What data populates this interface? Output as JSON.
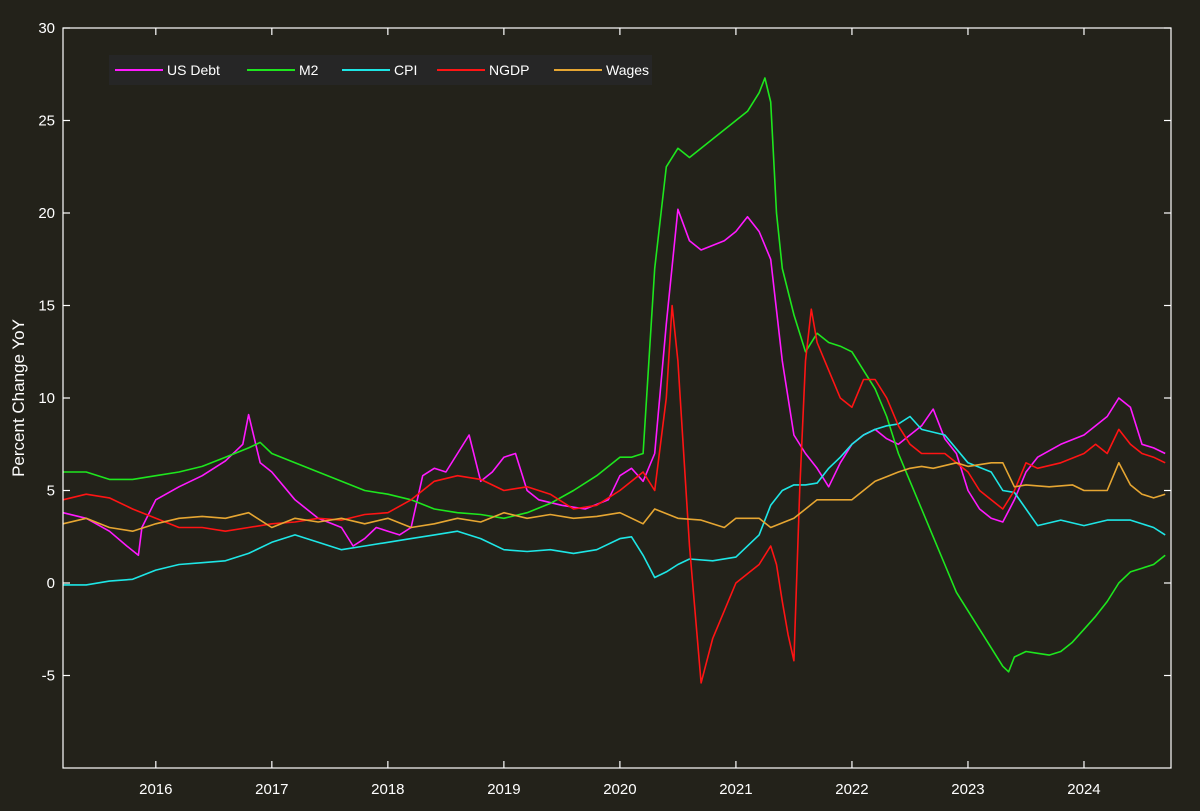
{
  "colors": {
    "background": "#23221a",
    "plot_background": "#23221a",
    "axis": "#ffffff",
    "legend_background": "#262626"
  },
  "chart_data": {
    "type": "line",
    "title": "",
    "xlabel": "",
    "ylabel": "Percent Change YoY",
    "xlim": [
      2015.2,
      2024.75
    ],
    "ylim": [
      -10,
      30
    ],
    "xticks": [
      2016,
      2017,
      2018,
      2019,
      2020,
      2021,
      2022,
      2023,
      2024
    ],
    "xtick_labels": [
      "2016",
      "2017",
      "2018",
      "2019",
      "2020",
      "2021",
      "2022",
      "2023",
      "2024"
    ],
    "yticks": [
      -5,
      0,
      5,
      10,
      15,
      20,
      25,
      30
    ],
    "ytick_labels": [
      "-5",
      "0",
      "5",
      "10",
      "15",
      "20",
      "25",
      "30"
    ],
    "grid": false,
    "legend_position": "top-left",
    "series": [
      {
        "name": "US Debt",
        "color": "#ff1aff",
        "x": [
          2015.2,
          2015.4,
          2015.6,
          2015.75,
          2015.85,
          2015.88,
          2016.0,
          2016.2,
          2016.4,
          2016.6,
          2016.75,
          2016.8,
          2016.9,
          2017.0,
          2017.2,
          2017.4,
          2017.6,
          2017.7,
          2017.8,
          2017.9,
          2018.0,
          2018.1,
          2018.2,
          2018.3,
          2018.4,
          2018.5,
          2018.6,
          2018.7,
          2018.8,
          2018.9,
          2019.0,
          2019.1,
          2019.2,
          2019.3,
          2019.5,
          2019.7,
          2019.9,
          2020.0,
          2020.1,
          2020.2,
          2020.3,
          2020.4,
          2020.5,
          2020.6,
          2020.7,
          2020.9,
          2021.0,
          2021.1,
          2021.2,
          2021.3,
          2021.4,
          2021.5,
          2021.6,
          2021.7,
          2021.8,
          2021.9,
          2022.0,
          2022.1,
          2022.2,
          2022.3,
          2022.4,
          2022.5,
          2022.6,
          2022.7,
          2022.8,
          2022.9,
          2023.0,
          2023.1,
          2023.2,
          2023.3,
          2023.4,
          2023.5,
          2023.6,
          2023.8,
          2024.0,
          2024.2,
          2024.3,
          2024.4,
          2024.5,
          2024.6,
          2024.7
        ],
        "values": [
          3.8,
          3.5,
          2.8,
          2.0,
          1.5,
          3.0,
          4.5,
          5.2,
          5.8,
          6.6,
          7.5,
          9.1,
          6.5,
          6.0,
          4.5,
          3.5,
          3.0,
          2.0,
          2.4,
          3.0,
          2.8,
          2.6,
          3.0,
          5.8,
          6.2,
          6.0,
          7.0,
          8.0,
          5.5,
          6.0,
          6.8,
          7.0,
          5.0,
          4.5,
          4.2,
          4.0,
          4.5,
          5.8,
          6.2,
          5.5,
          7.0,
          14.0,
          20.2,
          18.5,
          18.0,
          18.5,
          19.0,
          19.8,
          19.0,
          17.5,
          12.0,
          8.0,
          7.0,
          6.2,
          5.2,
          6.5,
          7.5,
          8.0,
          8.3,
          7.8,
          7.5,
          8.0,
          8.5,
          9.4,
          7.8,
          7.0,
          5.0,
          4.0,
          3.5,
          3.3,
          4.5,
          6.0,
          6.8,
          7.5,
          8.0,
          9.0,
          10.0,
          9.5,
          7.5,
          7.3,
          7.0
        ]
      },
      {
        "name": "M2",
        "color": "#1ee61e",
        "x": [
          2015.2,
          2015.4,
          2015.6,
          2015.8,
          2016.0,
          2016.2,
          2016.4,
          2016.6,
          2016.8,
          2016.9,
          2017.0,
          2017.2,
          2017.4,
          2017.6,
          2017.8,
          2018.0,
          2018.2,
          2018.4,
          2018.6,
          2018.8,
          2019.0,
          2019.2,
          2019.4,
          2019.6,
          2019.8,
          2020.0,
          2020.1,
          2020.2,
          2020.3,
          2020.4,
          2020.5,
          2020.6,
          2020.7,
          2020.8,
          2020.9,
          2021.0,
          2021.1,
          2021.2,
          2021.25,
          2021.3,
          2021.35,
          2021.4,
          2021.5,
          2021.6,
          2021.7,
          2021.8,
          2021.9,
          2022.0,
          2022.1,
          2022.2,
          2022.3,
          2022.4,
          2022.5,
          2022.6,
          2022.7,
          2022.8,
          2022.9,
          2023.0,
          2023.1,
          2023.2,
          2023.3,
          2023.35,
          2023.4,
          2023.5,
          2023.6,
          2023.7,
          2023.8,
          2023.9,
          2024.0,
          2024.1,
          2024.2,
          2024.3,
          2024.4,
          2024.5,
          2024.6,
          2024.7
        ],
        "values": [
          6.0,
          6.0,
          5.6,
          5.6,
          5.8,
          6.0,
          6.3,
          6.8,
          7.3,
          7.6,
          7.0,
          6.5,
          6.0,
          5.5,
          5.0,
          4.8,
          4.5,
          4.0,
          3.8,
          3.7,
          3.5,
          3.8,
          4.3,
          5.0,
          5.8,
          6.8,
          6.8,
          7.0,
          17.0,
          22.5,
          23.5,
          23.0,
          23.5,
          24.0,
          24.5,
          25.0,
          25.5,
          26.5,
          27.3,
          26.0,
          20.0,
          17.0,
          14.5,
          12.5,
          13.5,
          13.0,
          12.8,
          12.5,
          11.5,
          10.5,
          9.0,
          7.0,
          5.5,
          4.0,
          2.5,
          1.0,
          -0.5,
          -1.5,
          -2.5,
          -3.5,
          -4.5,
          -4.8,
          -4.0,
          -3.7,
          -3.8,
          -3.9,
          -3.7,
          -3.2,
          -2.5,
          -1.8,
          -1.0,
          0.0,
          0.6,
          0.8,
          1.0,
          1.5
        ]
      },
      {
        "name": "CPI",
        "color": "#1ee6e6",
        "x": [
          2015.2,
          2015.4,
          2015.6,
          2015.8,
          2016.0,
          2016.2,
          2016.4,
          2016.6,
          2016.8,
          2017.0,
          2017.2,
          2017.4,
          2017.6,
          2017.8,
          2018.0,
          2018.2,
          2018.4,
          2018.6,
          2018.8,
          2019.0,
          2019.2,
          2019.4,
          2019.6,
          2019.8,
          2020.0,
          2020.1,
          2020.2,
          2020.3,
          2020.4,
          2020.5,
          2020.6,
          2020.8,
          2021.0,
          2021.2,
          2021.3,
          2021.4,
          2021.5,
          2021.6,
          2021.7,
          2021.8,
          2021.9,
          2022.0,
          2022.1,
          2022.2,
          2022.3,
          2022.4,
          2022.5,
          2022.6,
          2022.8,
          2023.0,
          2023.2,
          2023.3,
          2023.4,
          2023.5,
          2023.6,
          2023.8,
          2024.0,
          2024.2,
          2024.4,
          2024.6,
          2024.7
        ],
        "values": [
          -0.1,
          -0.1,
          0.1,
          0.2,
          0.7,
          1.0,
          1.1,
          1.2,
          1.6,
          2.2,
          2.6,
          2.2,
          1.8,
          2.0,
          2.2,
          2.4,
          2.6,
          2.8,
          2.4,
          1.8,
          1.7,
          1.8,
          1.6,
          1.8,
          2.4,
          2.5,
          1.5,
          0.3,
          0.6,
          1.0,
          1.3,
          1.2,
          1.4,
          2.6,
          4.2,
          5.0,
          5.3,
          5.3,
          5.4,
          6.2,
          6.8,
          7.5,
          8.0,
          8.3,
          8.5,
          8.6,
          9.0,
          8.3,
          8.0,
          6.5,
          6.0,
          5.0,
          4.9,
          4.0,
          3.1,
          3.4,
          3.1,
          3.4,
          3.4,
          3.0,
          2.6
        ]
      },
      {
        "name": "NGDP",
        "color": "#ff1414",
        "x": [
          2015.2,
          2015.4,
          2015.6,
          2015.8,
          2016.0,
          2016.2,
          2016.4,
          2016.6,
          2016.8,
          2017.0,
          2017.2,
          2017.4,
          2017.6,
          2017.8,
          2018.0,
          2018.2,
          2018.4,
          2018.6,
          2018.8,
          2019.0,
          2019.2,
          2019.4,
          2019.6,
          2019.8,
          2020.0,
          2020.1,
          2020.2,
          2020.3,
          2020.4,
          2020.45,
          2020.5,
          2020.6,
          2020.7,
          2020.8,
          2020.9,
          2021.0,
          2021.1,
          2021.2,
          2021.3,
          2021.35,
          2021.4,
          2021.45,
          2021.5,
          2021.55,
          2021.6,
          2021.65,
          2021.7,
          2021.8,
          2021.9,
          2022.0,
          2022.1,
          2022.2,
          2022.3,
          2022.4,
          2022.5,
          2022.6,
          2022.7,
          2022.8,
          2022.9,
          2023.0,
          2023.1,
          2023.2,
          2023.3,
          2023.4,
          2023.5,
          2023.6,
          2023.8,
          2024.0,
          2024.1,
          2024.2,
          2024.3,
          2024.4,
          2024.5,
          2024.6,
          2024.7
        ],
        "values": [
          4.5,
          4.8,
          4.6,
          4.0,
          3.5,
          3.0,
          3.0,
          2.8,
          3.0,
          3.2,
          3.3,
          3.5,
          3.4,
          3.7,
          3.8,
          4.5,
          5.5,
          5.8,
          5.6,
          5.0,
          5.2,
          4.8,
          4.0,
          4.2,
          5.0,
          5.5,
          6.0,
          5.0,
          10.0,
          15.0,
          12.0,
          2.0,
          -5.4,
          -3.0,
          -1.5,
          0.0,
          0.5,
          1.0,
          2.0,
          1.0,
          -1.0,
          -2.8,
          -4.2,
          5.0,
          12.0,
          14.8,
          13.0,
          11.5,
          10.0,
          9.5,
          11.0,
          11.0,
          10.0,
          8.5,
          7.5,
          7.0,
          7.0,
          7.0,
          6.5,
          6.0,
          5.0,
          4.5,
          4.0,
          5.0,
          6.5,
          6.2,
          6.5,
          7.0,
          7.5,
          7.0,
          8.3,
          7.5,
          7.0,
          6.8,
          6.5
        ]
      },
      {
        "name": "Wages",
        "color": "#e6a632",
        "x": [
          2015.2,
          2015.4,
          2015.6,
          2015.8,
          2016.0,
          2016.2,
          2016.4,
          2016.6,
          2016.8,
          2017.0,
          2017.2,
          2017.4,
          2017.6,
          2017.8,
          2018.0,
          2018.2,
          2018.4,
          2018.6,
          2018.8,
          2019.0,
          2019.2,
          2019.4,
          2019.6,
          2019.8,
          2020.0,
          2020.2,
          2020.3,
          2020.5,
          2020.7,
          2020.9,
          2021.0,
          2021.2,
          2021.3,
          2021.5,
          2021.7,
          2021.9,
          2022.0,
          2022.2,
          2022.4,
          2022.5,
          2022.6,
          2022.7,
          2022.9,
          2023.0,
          2023.2,
          2023.3,
          2023.4,
          2023.5,
          2023.7,
          2023.9,
          2024.0,
          2024.2,
          2024.3,
          2024.4,
          2024.5,
          2024.6,
          2024.7
        ],
        "values": [
          3.2,
          3.5,
          3.0,
          2.8,
          3.2,
          3.5,
          3.6,
          3.5,
          3.8,
          3.0,
          3.5,
          3.3,
          3.5,
          3.2,
          3.5,
          3.0,
          3.2,
          3.5,
          3.3,
          3.8,
          3.5,
          3.7,
          3.5,
          3.6,
          3.8,
          3.2,
          4.0,
          3.5,
          3.4,
          3.0,
          3.5,
          3.5,
          3.0,
          3.5,
          4.5,
          4.5,
          4.5,
          5.5,
          6.0,
          6.2,
          6.3,
          6.2,
          6.5,
          6.3,
          6.5,
          6.5,
          5.2,
          5.3,
          5.2,
          5.3,
          5.0,
          5.0,
          6.5,
          5.3,
          4.8,
          4.6,
          4.8
        ]
      }
    ]
  }
}
